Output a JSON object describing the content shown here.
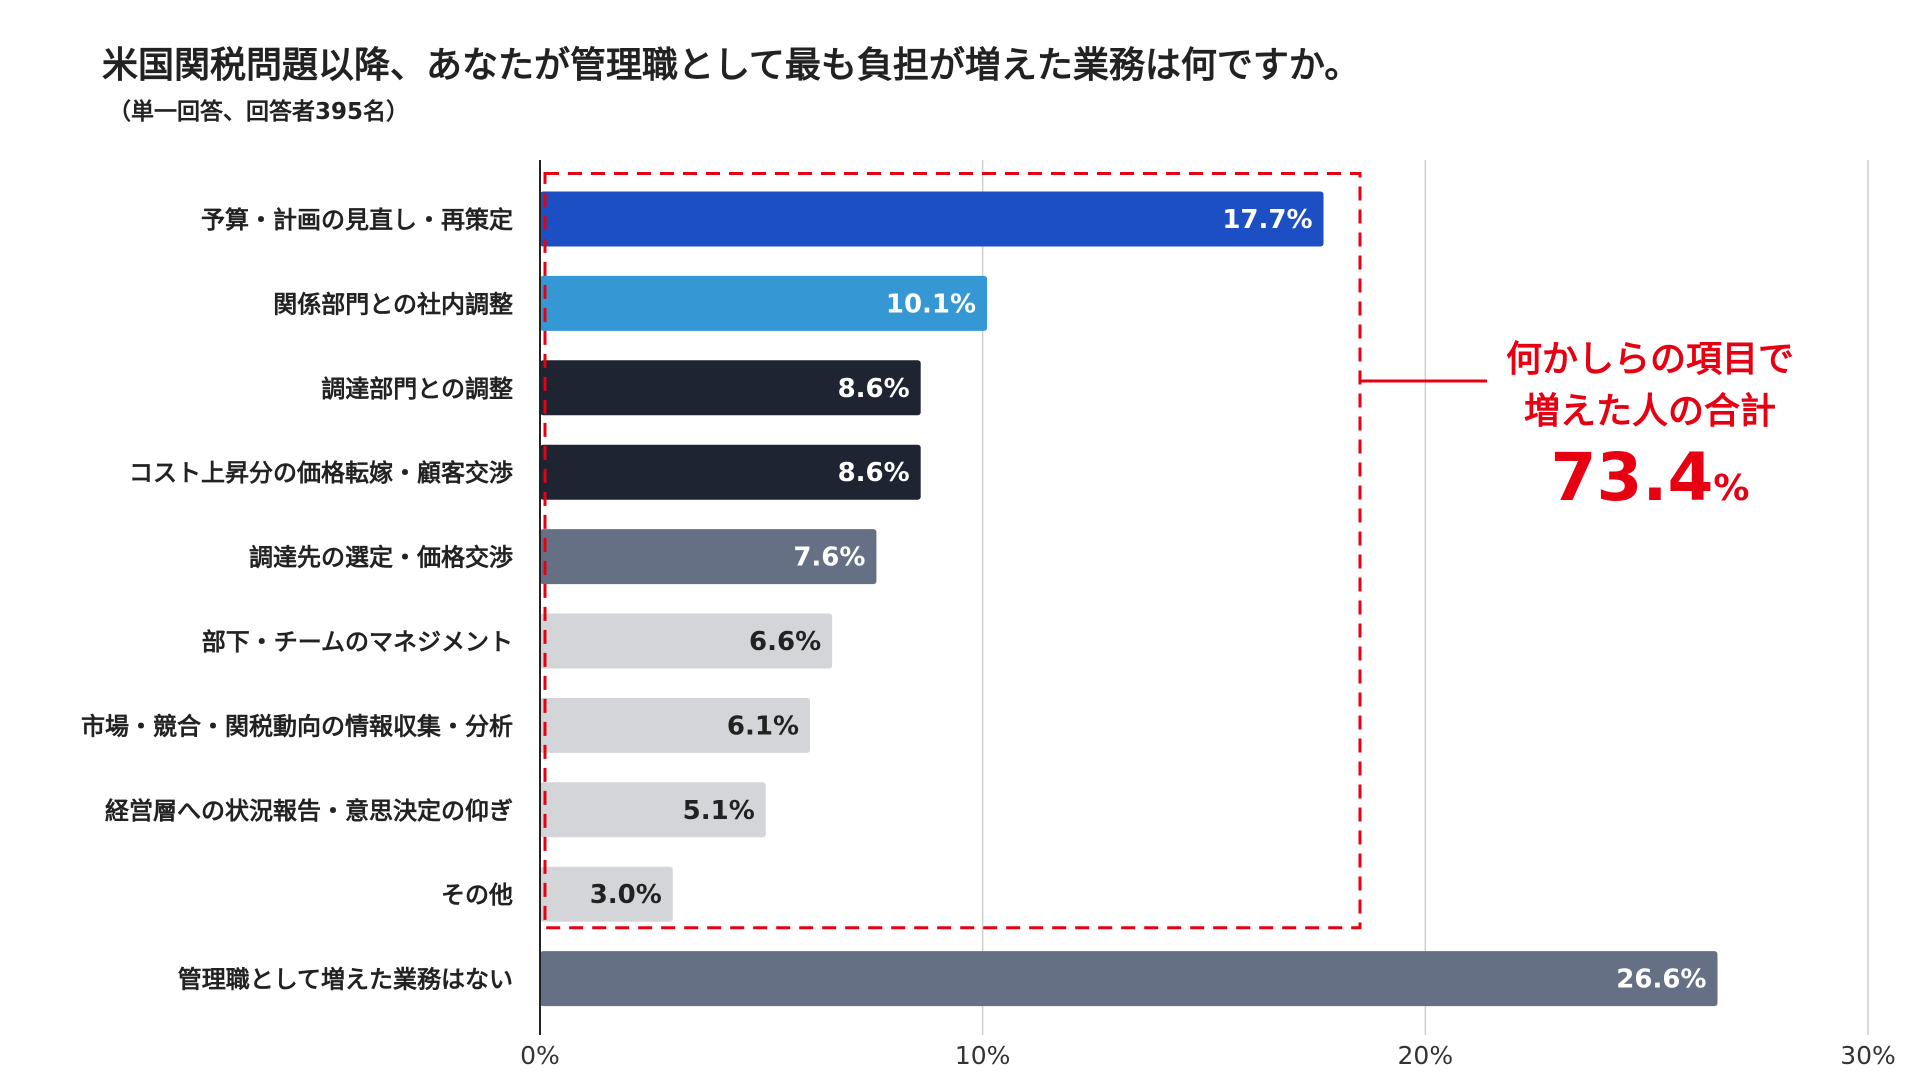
{
  "header": {
    "title": "米国関税問題以降、あなたが管理職として最も負担が増えた業務は何ですか。",
    "subtitle": "（単一回答、回答者395名）"
  },
  "chart_data": {
    "type": "bar",
    "orientation": "horizontal",
    "categories": [
      "予算・計画の見直し・再策定",
      "関係部門との社内調整",
      "調達部門との調整",
      "コスト上昇分の価格転嫁・顧客交渉",
      "調達先の選定・価格交渉",
      "部下・チームのマネジメント",
      "市場・競合・関税動向の情報収集・分析",
      "経営層への状況報告・意思決定の仰ぎ",
      "その他",
      "管理職として増えた業務はない"
    ],
    "values": [
      17.7,
      10.1,
      8.6,
      8.6,
      7.6,
      6.6,
      6.1,
      5.1,
      3.0,
      26.6
    ],
    "value_labels": [
      "17.7%",
      "10.1%",
      "8.6%",
      "8.6%",
      "7.6%",
      "6.6%",
      "6.1%",
      "5.1%",
      "3.0%",
      "26.6%"
    ],
    "bar_colors": [
      "#1c4fc4",
      "#3597d3",
      "#1f2433",
      "#1f2433",
      "#667085",
      "#d4d5d9",
      "#d4d5d9",
      "#d4d5d9",
      "#d4d5d9",
      "#667085"
    ],
    "label_colors": [
      "#ffffff",
      "#ffffff",
      "#ffffff",
      "#ffffff",
      "#ffffff",
      "#222222",
      "#222222",
      "#222222",
      "#222222",
      "#ffffff"
    ],
    "xlim": [
      0,
      30
    ],
    "xticks": [
      0,
      10,
      20,
      30
    ],
    "xtick_labels": [
      "0%",
      "10%",
      "20%",
      "30%"
    ],
    "grid": true,
    "annotation": {
      "text_line1": "何かしらの項目で",
      "text_line2": "増えた人の合計",
      "total": "73.4",
      "unit": "%",
      "color": "#e60012",
      "covers_categories": 9
    }
  }
}
